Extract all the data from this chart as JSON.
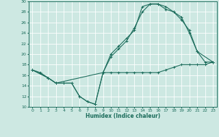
{
  "title": "",
  "xlabel": "Humidex (Indice chaleur)",
  "ylabel": "",
  "bg_color": "#cde8e2",
  "grid_color": "#ffffff",
  "line_color": "#1a6b5a",
  "xlim": [
    -0.5,
    23.5
  ],
  "ylim": [
    10,
    30
  ],
  "xticks": [
    0,
    1,
    2,
    3,
    4,
    5,
    6,
    7,
    8,
    9,
    10,
    11,
    12,
    13,
    14,
    15,
    16,
    17,
    18,
    19,
    20,
    21,
    22,
    23
  ],
  "yticks": [
    10,
    12,
    14,
    16,
    18,
    20,
    22,
    24,
    26,
    28,
    30
  ],
  "line1_x": [
    0,
    1,
    2,
    3,
    4,
    5,
    6,
    7,
    8,
    9,
    10,
    11,
    12,
    13,
    14,
    15,
    16,
    17,
    18,
    19,
    20,
    21,
    22,
    23
  ],
  "line1_y": [
    17,
    16.5,
    15.5,
    14.5,
    14.5,
    14.5,
    12,
    11,
    10.5,
    16.5,
    16.5,
    16.5,
    16.5,
    16.5,
    16.5,
    16.5,
    16.5,
    17,
    17.5,
    18,
    18,
    18,
    18,
    18.5
  ],
  "line2_x": [
    0,
    2,
    3,
    4,
    5,
    6,
    7,
    8,
    9,
    10,
    11,
    12,
    13,
    14,
    15,
    16,
    17,
    18,
    19,
    20,
    21,
    23
  ],
  "line2_y": [
    17,
    15.5,
    14.5,
    14.5,
    14.5,
    12,
    11,
    10.5,
    16.5,
    20,
    21.5,
    23,
    24.5,
    29,
    29.5,
    29.5,
    29,
    28,
    27,
    24,
    20.5,
    18.5
  ],
  "line3_x": [
    0,
    2,
    3,
    9,
    10,
    11,
    12,
    13,
    14,
    15,
    16,
    17,
    18,
    19,
    20,
    21,
    22,
    23
  ],
  "line3_y": [
    17,
    15.5,
    14.5,
    16.5,
    19.5,
    21,
    22.5,
    25,
    28,
    29.5,
    29.5,
    28.5,
    28,
    26.5,
    24.5,
    20.5,
    18.5,
    18.5
  ]
}
